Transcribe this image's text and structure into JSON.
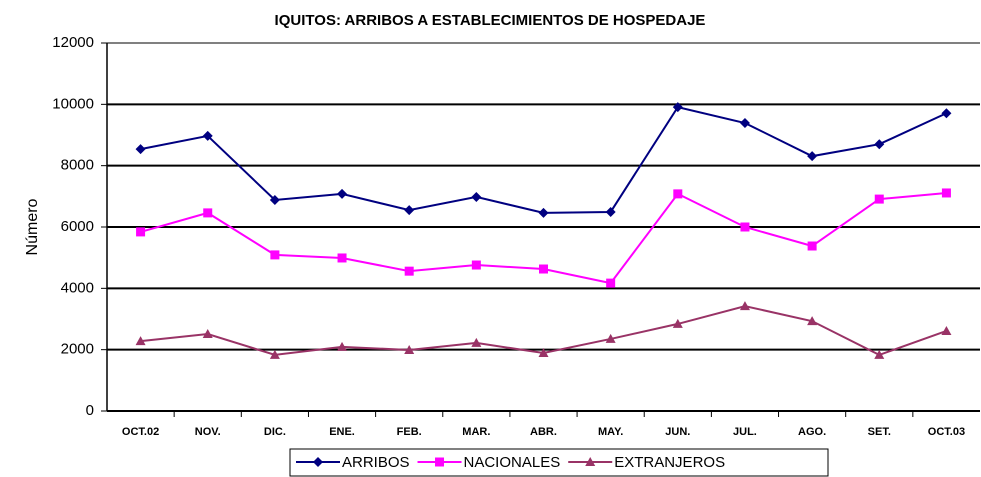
{
  "chart_data": {
    "type": "line",
    "title": "IQUITOS: ARRIBOS A ESTABLECIMIENTOS DE HOSPEDAJE",
    "y_label": "Número",
    "categories": [
      "OCT.02",
      "NOV.",
      "DIC.",
      "ENE.",
      "FEB.",
      "MAR.",
      "ABR.",
      "MAY.",
      "JUN.",
      "JUL.",
      "AGO.",
      "SET.",
      "OCT.03"
    ],
    "series": [
      {
        "name": "ARRIBOS",
        "color": "#000080",
        "marker": "diamond",
        "values": [
          8540,
          8970,
          6880,
          7080,
          6550,
          6980,
          6460,
          6490,
          9910,
          9390,
          8310,
          8700,
          9710
        ]
      },
      {
        "name": "NACIONALES",
        "color": "#ff00ff",
        "marker": "square",
        "values": [
          5840,
          6460,
          5090,
          4990,
          4560,
          4760,
          4630,
          4170,
          7080,
          6000,
          5380,
          6910,
          7110
        ]
      },
      {
        "name": "EXTRANJEROS",
        "color": "#993366",
        "marker": "triangle",
        "values": [
          2280,
          2510,
          1830,
          2090,
          1990,
          2220,
          1890,
          2350,
          2840,
          3420,
          2930,
          1830,
          2610
        ]
      }
    ],
    "ylim": [
      0,
      12000
    ],
    "yticks": [
      0,
      2000,
      4000,
      6000,
      8000,
      10000,
      12000
    ],
    "grid": true,
    "legend": "bottom"
  }
}
